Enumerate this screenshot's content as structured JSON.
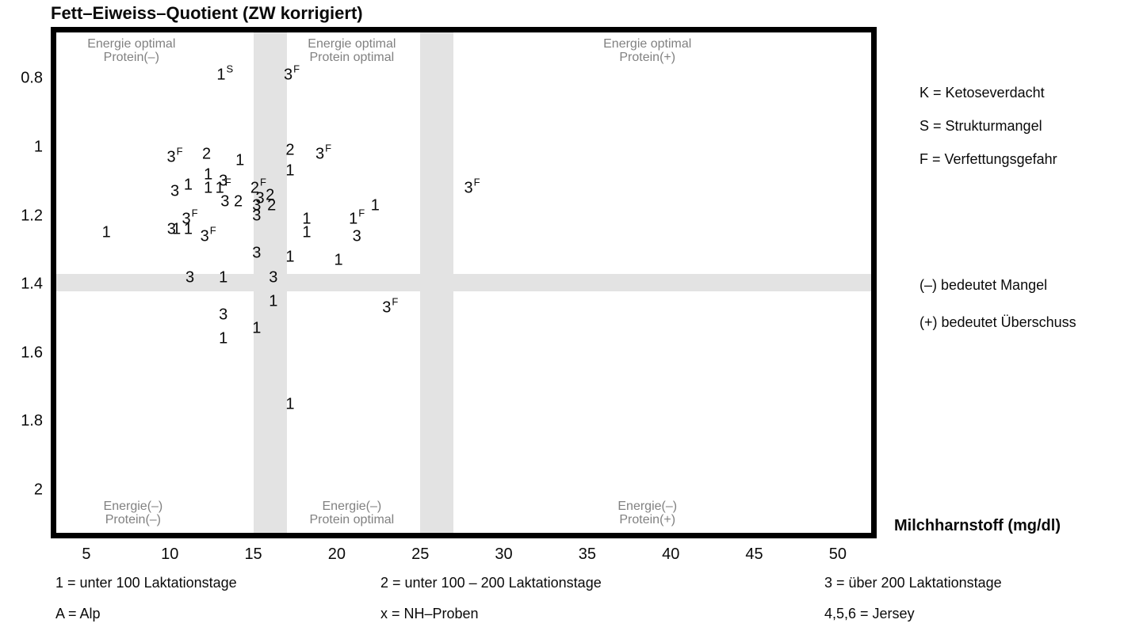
{
  "title": "Fett–Eiweiss–Quotient (ZW korrigiert)",
  "x_axis_title": "Milchharnstoff (mg/dl)",
  "side_legend": {
    "marker_codes": [
      "K = Ketoseverdacht",
      "S = Strukturmangel",
      "F = Verfettungsgefahr"
    ],
    "sign_meanings": [
      "(–) bedeutet Mangel",
      "(+) bedeutet Überschuss"
    ]
  },
  "bottom_legend": {
    "row1": [
      "1 = unter 100 Laktationstage",
      "2 = unter 100 – 200 Laktationstage",
      "3 = über 200 Laktationstage"
    ],
    "row2": [
      "A = Alp",
      "x = NH–Proben",
      "4,5,6 = Jersey"
    ]
  },
  "colors": {
    "band": "#e3e3e3",
    "region_text": "#818181",
    "ink": "#0a0a0a"
  },
  "chart_data": {
    "type": "scatter",
    "title": "Fett–Eiweiss–Quotient (ZW korrigiert)",
    "xlabel": "Milchharnstoff (mg/dl)",
    "ylabel": "Fett–Eiweiss–Quotient (ZW korrigiert)",
    "x_ticks": [
      5,
      10,
      15,
      20,
      25,
      30,
      35,
      40,
      45,
      50
    ],
    "y_ticks": [
      "0.8",
      "1",
      "1.2",
      "1.4",
      "1.6",
      "1.8",
      "2"
    ],
    "xlim": [
      3.2,
      52.0
    ],
    "ylim": [
      0.665,
      2.125
    ],
    "y_axis_inverted": true,
    "grid": false,
    "legend_position": "right",
    "shaded_bands": {
      "vertical_x": [
        [
          15,
          17
        ],
        [
          25,
          27
        ]
      ],
      "horizontal_y": [
        [
          1.37,
          1.42
        ]
      ]
    },
    "region_labels": [
      {
        "lines": [
          "Energie optimal",
          "Protein(–)"
        ],
        "x": 7.7,
        "y": 0.72
      },
      {
        "lines": [
          "Energie optimal",
          "Protein optimal"
        ],
        "x": 20.9,
        "y": 0.72
      },
      {
        "lines": [
          "Energie optimal",
          "Protein(+)"
        ],
        "x": 38.6,
        "y": 0.72
      },
      {
        "lines": [
          "Energie(–)",
          "Protein(–)"
        ],
        "x": 7.8,
        "y": 2.07
      },
      {
        "lines": [
          "Energie(–)",
          "Protein optimal"
        ],
        "x": 20.9,
        "y": 2.07
      },
      {
        "lines": [
          "Energie(–)",
          "Protein(+)"
        ],
        "x": 38.6,
        "y": 2.07
      }
    ],
    "points": [
      {
        "x": 13.3,
        "y": 0.79,
        "label": "1",
        "sup": "S"
      },
      {
        "x": 17.3,
        "y": 0.79,
        "label": "3",
        "sup": "F"
      },
      {
        "x": 10.3,
        "y": 1.03,
        "label": "3",
        "sup": "F"
      },
      {
        "x": 12.2,
        "y": 1.02,
        "label": "2"
      },
      {
        "x": 14.2,
        "y": 1.04,
        "label": "1"
      },
      {
        "x": 17.2,
        "y": 1.01,
        "label": "2"
      },
      {
        "x": 19.2,
        "y": 1.02,
        "label": "3",
        "sup": "F"
      },
      {
        "x": 17.2,
        "y": 1.07,
        "label": "1"
      },
      {
        "x": 11.1,
        "y": 1.11,
        "label": "1"
      },
      {
        "x": 12.3,
        "y": 1.08,
        "label": "1"
      },
      {
        "x": 12.3,
        "y": 1.12,
        "label": "1"
      },
      {
        "x": 13.2,
        "y": 1.1,
        "label": "3"
      },
      {
        "x": 10.3,
        "y": 1.13,
        "label": "3"
      },
      {
        "x": 13.2,
        "y": 1.12,
        "label": "1",
        "sup": "F"
      },
      {
        "x": 13.3,
        "y": 1.16,
        "label": "3"
      },
      {
        "x": 14.1,
        "y": 1.16,
        "label": "2"
      },
      {
        "x": 15.3,
        "y": 1.12,
        "label": "2",
        "sup": "F"
      },
      {
        "x": 15.4,
        "y": 1.15,
        "label": "3"
      },
      {
        "x": 16.0,
        "y": 1.14,
        "label": "2"
      },
      {
        "x": 16.1,
        "y": 1.17,
        "label": "2"
      },
      {
        "x": 15.2,
        "y": 1.17,
        "label": "3"
      },
      {
        "x": 15.2,
        "y": 1.2,
        "label": "3"
      },
      {
        "x": 11.2,
        "y": 1.21,
        "label": "3",
        "sup": "F"
      },
      {
        "x": 11.1,
        "y": 1.24,
        "label": "1"
      },
      {
        "x": 10.1,
        "y": 1.24,
        "label": "3"
      },
      {
        "x": 10.4,
        "y": 1.24,
        "label": "1"
      },
      {
        "x": 12.3,
        "y": 1.26,
        "label": "3",
        "sup": "F"
      },
      {
        "x": 6.2,
        "y": 1.25,
        "label": "1"
      },
      {
        "x": 18.2,
        "y": 1.21,
        "label": "1"
      },
      {
        "x": 18.2,
        "y": 1.25,
        "label": "1"
      },
      {
        "x": 21.2,
        "y": 1.21,
        "label": "1",
        "sup": "F"
      },
      {
        "x": 21.2,
        "y": 1.26,
        "label": "3"
      },
      {
        "x": 22.3,
        "y": 1.17,
        "label": "1"
      },
      {
        "x": 28.1,
        "y": 1.12,
        "label": "3",
        "sup": "F"
      },
      {
        "x": 15.2,
        "y": 1.31,
        "label": "3"
      },
      {
        "x": 17.2,
        "y": 1.32,
        "label": "1"
      },
      {
        "x": 20.1,
        "y": 1.33,
        "label": "1"
      },
      {
        "x": 11.2,
        "y": 1.38,
        "label": "3"
      },
      {
        "x": 13.2,
        "y": 1.38,
        "label": "1"
      },
      {
        "x": 16.2,
        "y": 1.38,
        "label": "3"
      },
      {
        "x": 16.2,
        "y": 1.45,
        "label": "1"
      },
      {
        "x": 23.2,
        "y": 1.47,
        "label": "3",
        "sup": "F"
      },
      {
        "x": 13.2,
        "y": 1.49,
        "label": "3"
      },
      {
        "x": 15.2,
        "y": 1.53,
        "label": "1"
      },
      {
        "x": 13.2,
        "y": 1.56,
        "label": "1"
      },
      {
        "x": 17.2,
        "y": 1.75,
        "label": "1"
      }
    ]
  }
}
